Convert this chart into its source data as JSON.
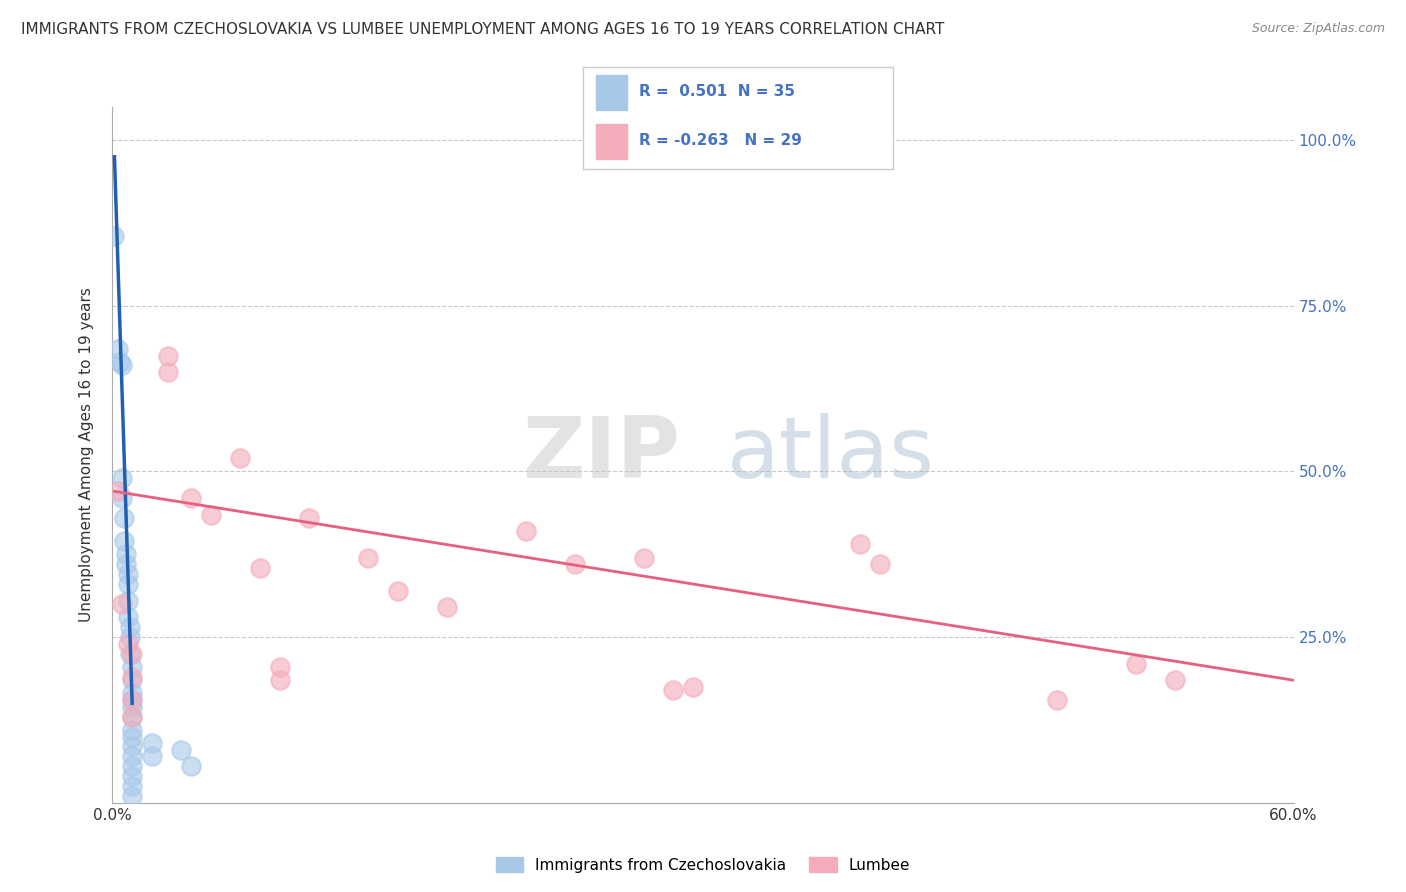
{
  "title": "IMMIGRANTS FROM CZECHOSLOVAKIA VS LUMBEE UNEMPLOYMENT AMONG AGES 16 TO 19 YEARS CORRELATION CHART",
  "source": "Source: ZipAtlas.com",
  "ylabel": "Unemployment Among Ages 16 to 19 years",
  "xlim": [
    0.0,
    0.6
  ],
  "ylim": [
    0.0,
    1.05
  ],
  "x_ticks": [
    0.0,
    0.1,
    0.2,
    0.3,
    0.4,
    0.5,
    0.6
  ],
  "x_tick_labels": [
    "0.0%",
    "",
    "",
    "",
    "",
    "",
    "60.0%"
  ],
  "y_ticks_right": [
    0.25,
    0.5,
    0.75,
    1.0
  ],
  "y_tick_labels_right": [
    "25.0%",
    "50.0%",
    "75.0%",
    "100.0%"
  ],
  "blue_color": "#A8C8E8",
  "pink_color": "#F4ABBA",
  "blue_line_color": "#2060B0",
  "pink_line_color": "#E86080",
  "scatter_blue": [
    [
      0.001,
      0.855
    ],
    [
      0.003,
      0.685
    ],
    [
      0.004,
      0.665
    ],
    [
      0.005,
      0.66
    ],
    [
      0.005,
      0.49
    ],
    [
      0.005,
      0.46
    ],
    [
      0.006,
      0.43
    ],
    [
      0.006,
      0.395
    ],
    [
      0.007,
      0.375
    ],
    [
      0.007,
      0.36
    ],
    [
      0.008,
      0.345
    ],
    [
      0.008,
      0.33
    ],
    [
      0.008,
      0.305
    ],
    [
      0.008,
      0.28
    ],
    [
      0.009,
      0.265
    ],
    [
      0.009,
      0.25
    ],
    [
      0.009,
      0.225
    ],
    [
      0.01,
      0.205
    ],
    [
      0.01,
      0.185
    ],
    [
      0.01,
      0.165
    ],
    [
      0.01,
      0.155
    ],
    [
      0.01,
      0.145
    ],
    [
      0.01,
      0.13
    ],
    [
      0.01,
      0.11
    ],
    [
      0.01,
      0.1
    ],
    [
      0.01,
      0.085
    ],
    [
      0.01,
      0.07
    ],
    [
      0.01,
      0.055
    ],
    [
      0.01,
      0.04
    ],
    [
      0.01,
      0.025
    ],
    [
      0.01,
      0.01
    ],
    [
      0.02,
      0.09
    ],
    [
      0.02,
      0.07
    ],
    [
      0.035,
      0.08
    ],
    [
      0.04,
      0.055
    ]
  ],
  "scatter_pink": [
    [
      0.003,
      0.47
    ],
    [
      0.005,
      0.3
    ],
    [
      0.008,
      0.24
    ],
    [
      0.01,
      0.225
    ],
    [
      0.01,
      0.19
    ],
    [
      0.01,
      0.155
    ],
    [
      0.01,
      0.13
    ],
    [
      0.028,
      0.675
    ],
    [
      0.028,
      0.65
    ],
    [
      0.04,
      0.46
    ],
    [
      0.05,
      0.435
    ],
    [
      0.065,
      0.52
    ],
    [
      0.075,
      0.355
    ],
    [
      0.085,
      0.205
    ],
    [
      0.085,
      0.185
    ],
    [
      0.1,
      0.43
    ],
    [
      0.13,
      0.37
    ],
    [
      0.145,
      0.32
    ],
    [
      0.17,
      0.295
    ],
    [
      0.21,
      0.41
    ],
    [
      0.235,
      0.36
    ],
    [
      0.27,
      0.37
    ],
    [
      0.285,
      0.17
    ],
    [
      0.295,
      0.175
    ],
    [
      0.38,
      0.39
    ],
    [
      0.39,
      0.36
    ],
    [
      0.48,
      0.155
    ],
    [
      0.52,
      0.21
    ],
    [
      0.54,
      0.185
    ]
  ],
  "blue_trendline_x": [
    0.001,
    0.01
  ],
  "blue_trendline_y": [
    0.975,
    0.15
  ],
  "pink_trendline_x": [
    0.001,
    0.6
  ],
  "pink_trendline_y": [
    0.47,
    0.185
  ],
  "background_color": "#FFFFFF",
  "grid_color": "#BBBBBB",
  "watermark_zip": "ZIP",
  "watermark_atlas": "atlas"
}
